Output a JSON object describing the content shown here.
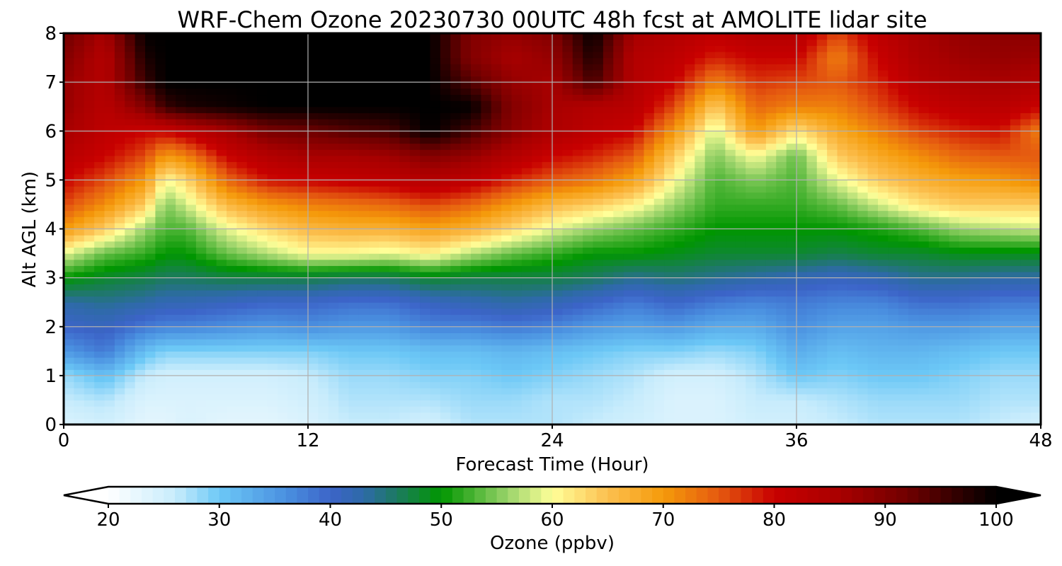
{
  "chart_data": {
    "type": "heatmap",
    "title": "WRF-Chem Ozone  20230730 00UTC 48h fcst at AMOLITE lidar site",
    "xlabel": "Forecast Time (Hour)",
    "ylabel": "Alt AGL (km)",
    "xlim": [
      0,
      48
    ],
    "ylim": [
      0,
      8
    ],
    "xticks": [
      "0",
      "12",
      "24",
      "36",
      "48"
    ],
    "yticks": [
      "0",
      "1",
      "2",
      "3",
      "4",
      "5",
      "6",
      "7",
      "8"
    ],
    "grid": true,
    "colorbar": {
      "label": "Ozone  (ppbv)",
      "range": [
        20,
        100
      ],
      "ticks": [
        "20",
        "30",
        "40",
        "50",
        "60",
        "70",
        "80",
        "90",
        "100"
      ],
      "extend": "both",
      "placement": "bottom",
      "color_stops": [
        {
          "value": 20,
          "color": "#ffffff"
        },
        {
          "value": 26,
          "color": "#c8ecfc"
        },
        {
          "value": 30,
          "color": "#6cc8f6"
        },
        {
          "value": 36,
          "color": "#4a90e0"
        },
        {
          "value": 40,
          "color": "#3c64c8"
        },
        {
          "value": 43,
          "color": "#2e6aa8"
        },
        {
          "value": 46,
          "color": "#1c7a60"
        },
        {
          "value": 50,
          "color": "#009600"
        },
        {
          "value": 56,
          "color": "#9ad36a"
        },
        {
          "value": 60,
          "color": "#ffff99"
        },
        {
          "value": 65,
          "color": "#fcc050"
        },
        {
          "value": 70,
          "color": "#f59a0a"
        },
        {
          "value": 75,
          "color": "#e55a10"
        },
        {
          "value": 80,
          "color": "#c80000"
        },
        {
          "value": 86,
          "color": "#a80000"
        },
        {
          "value": 92,
          "color": "#700000"
        },
        {
          "value": 100,
          "color": "#000000"
        }
      ]
    },
    "hours": [
      0,
      2,
      4,
      5,
      6,
      8,
      10,
      12,
      14,
      16,
      18,
      20,
      22,
      24,
      26,
      28,
      30,
      32,
      34,
      36,
      38,
      40,
      42,
      44,
      46,
      48
    ],
    "altitudes_km": [
      0,
      0.5,
      1,
      1.5,
      2,
      2.5,
      3,
      3.5,
      4,
      4.5,
      5,
      5.5,
      6,
      6.5,
      7,
      7.5,
      8
    ],
    "ozone_ppbv": [
      [
        24,
        25,
        23,
        23,
        24,
        23,
        23,
        24,
        26,
        26,
        25,
        27,
        27,
        27,
        26,
        25,
        24,
        24,
        25,
        25,
        26,
        27,
        27,
        27,
        26,
        25
      ],
      [
        26,
        27,
        24,
        24,
        24,
        24,
        24,
        25,
        27,
        27,
        27,
        28,
        28,
        27,
        27,
        26,
        24,
        24,
        26,
        26,
        27,
        28,
        28,
        28,
        27,
        27
      ],
      [
        28,
        31,
        26,
        25,
        25,
        25,
        25,
        26,
        28,
        28,
        29,
        29,
        30,
        29,
        28,
        27,
        25,
        25,
        27,
        30,
        29,
        30,
        30,
        29,
        28,
        28
      ],
      [
        35,
        38,
        31,
        29,
        29,
        29,
        29,
        29,
        30,
        30,
        31,
        31,
        32,
        31,
        30,
        29,
        29,
        28,
        29,
        33,
        31,
        32,
        32,
        31,
        30,
        30
      ],
      [
        40,
        41,
        38,
        37,
        37,
        36,
        35,
        36,
        35,
        35,
        37,
        37,
        38,
        37,
        35,
        34,
        35,
        33,
        33,
        36,
        34,
        34,
        35,
        35,
        34,
        34
      ],
      [
        43,
        44,
        43,
        42,
        42,
        41,
        40,
        40,
        39,
        39,
        41,
        42,
        43,
        42,
        40,
        38,
        40,
        38,
        37,
        38,
        37,
        37,
        39,
        39,
        38,
        38
      ],
      [
        50,
        48,
        47,
        46,
        46,
        47,
        47,
        47,
        46,
        46,
        48,
        47,
        47,
        47,
        46,
        44,
        45,
        44,
        43,
        42,
        41,
        42,
        44,
        44,
        43,
        43
      ],
      [
        59,
        54,
        52,
        50,
        50,
        54,
        57,
        60,
        60,
        59,
        61,
        57,
        54,
        52,
        50,
        50,
        49,
        48,
        48,
        48,
        47,
        48,
        48,
        49,
        49,
        49
      ],
      [
        70,
        64,
        56,
        53,
        53,
        59,
        63,
        66,
        67,
        67,
        69,
        67,
        63,
        59,
        56,
        54,
        52,
        50,
        50,
        50,
        50,
        51,
        53,
        56,
        57,
        58
      ],
      [
        76,
        71,
        64,
        55,
        58,
        66,
        70,
        72,
        73,
        74,
        76,
        74,
        70,
        66,
        64,
        61,
        56,
        52,
        52,
        52,
        54,
        58,
        62,
        64,
        64,
        64
      ],
      [
        80,
        76,
        70,
        60,
        63,
        74,
        79,
        80,
        81,
        82,
        84,
        82,
        78,
        75,
        73,
        69,
        60,
        53,
        55,
        53,
        59,
        64,
        67,
        69,
        70,
        72
      ],
      [
        83,
        80,
        76,
        70,
        72,
        80,
        84,
        86,
        86,
        87,
        90,
        88,
        84,
        80,
        78,
        75,
        64,
        55,
        60,
        54,
        64,
        68,
        71,
        74,
        75,
        75
      ],
      [
        86,
        82,
        80,
        80,
        82,
        86,
        91,
        92,
        94,
        95,
        100,
        95,
        89,
        85,
        82,
        80,
        70,
        58,
        70,
        62,
        68,
        72,
        76,
        78,
        79,
        72
      ],
      [
        88,
        83,
        90,
        96,
        98,
        99,
        100,
        100,
        100,
        100,
        100,
        100,
        90,
        86,
        84,
        83,
        76,
        64,
        74,
        72,
        72,
        76,
        80,
        82,
        83,
        80
      ],
      [
        88,
        84,
        96,
        100,
        100,
        100,
        100,
        100,
        100,
        100,
        100,
        94,
        88,
        86,
        95,
        84,
        80,
        72,
        77,
        76,
        75,
        78,
        83,
        85,
        86,
        84
      ],
      [
        90,
        84,
        98,
        100,
        100,
        100,
        100,
        100,
        100,
        100,
        100,
        90,
        86,
        88,
        98,
        84,
        82,
        78,
        80,
        80,
        72,
        80,
        85,
        87,
        88,
        87
      ],
      [
        92,
        86,
        100,
        100,
        100,
        100,
        100,
        100,
        100,
        100,
        100,
        90,
        88,
        90,
        100,
        86,
        84,
        82,
        84,
        84,
        76,
        82,
        86,
        88,
        89,
        89
      ]
    ]
  }
}
